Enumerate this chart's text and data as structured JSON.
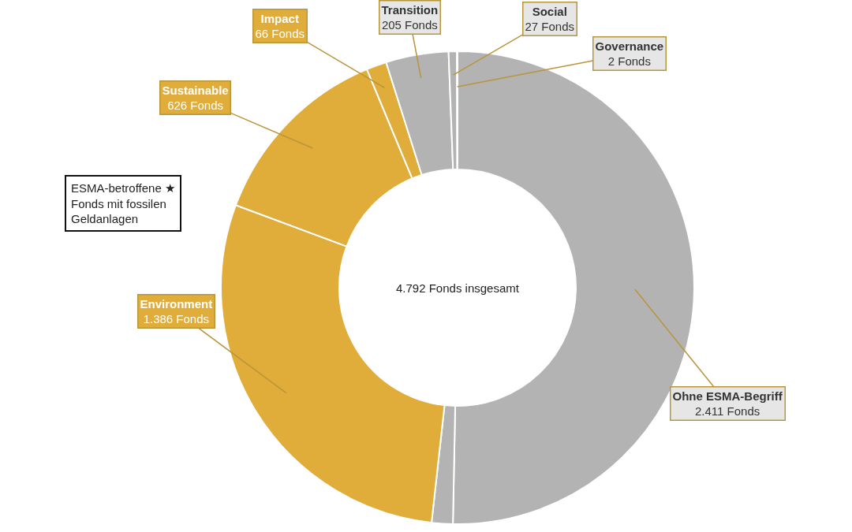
{
  "chart_data": {
    "type": "donut",
    "categories": [
      "Ohne ESMA-Begriff",
      null,
      "Environment",
      "Sustainable",
      "Impact",
      "Transition",
      "Social",
      "Governance"
    ],
    "values": [
      2411,
      69,
      1386,
      626,
      66,
      205,
      27,
      2
    ],
    "value_labels": [
      "2.411 Fonds",
      null,
      "1.386 Fonds",
      "626 Fonds",
      "66 Fonds",
      "205 Fonds",
      "27 Fonds",
      "2 Fonds"
    ],
    "colors": [
      "#b3b3b3",
      "#b3b3b3",
      "#e0ac3a",
      "#e0ac3a",
      "#e0ac3a",
      "#b3b3b3",
      "#b3b3b3",
      "#b3b3b3"
    ],
    "annotations": [
      "4.792 Fonds insgesamt",
      "ESMA-betroffene ★\nFonds mit fossilen\nGeldanlagen"
    ],
    "legend": false
  }
}
